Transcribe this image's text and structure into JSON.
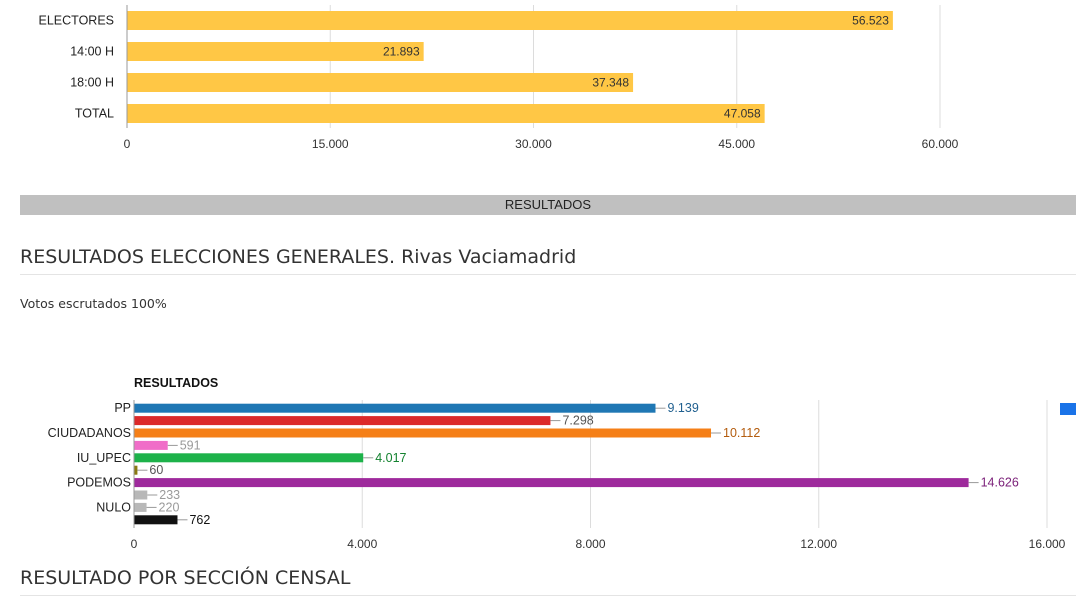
{
  "section_bar": "RESULTADOS",
  "results_heading": "RESULTADOS ELECCIONES GENERALES. Rivas Vaciamadrid",
  "scrutiny_text": "Votos escrutados 100%",
  "section_heading": "RESULTADO POR SECCIÓN CENSAL",
  "legend_color": "#1a73e8",
  "chart_data": [
    {
      "type": "bar",
      "orientation": "horizontal",
      "title": "",
      "categories": [
        "ELECTORES",
        "14:00 H",
        "18:00 H",
        "TOTAL"
      ],
      "values": [
        56523,
        21893,
        37348,
        47058
      ],
      "value_labels": [
        "56.523",
        "21.893",
        "37.348",
        "47.058"
      ],
      "xlim": [
        0,
        60000
      ],
      "ticks": [
        0,
        15000,
        30000,
        45000,
        60000
      ],
      "tick_labels": [
        "0",
        "15.000",
        "30.000",
        "45.000",
        "60.000"
      ],
      "bar_color": "#ffc745",
      "grid": true
    },
    {
      "type": "bar",
      "orientation": "horizontal",
      "title": "RESULTADOS",
      "category_labels": [
        "PP",
        "",
        "CIUDADANOS",
        "",
        "IU_UPEC",
        "",
        "PODEMOS",
        "",
        "NULO",
        ""
      ],
      "values": [
        9139,
        7298,
        10112,
        591,
        4017,
        60,
        14626,
        233,
        220,
        762
      ],
      "value_labels": [
        "9.139",
        "7.298",
        "10.112",
        "591",
        "4.017",
        "60",
        "14.626",
        "233",
        "220",
        "762"
      ],
      "colors": [
        "#1f77b4",
        "#dc2a2a",
        "#f57f17",
        "#f06dc8",
        "#1db24a",
        "#8a7a12",
        "#9e2a9c",
        "#b8b8b8",
        "#b8b8b8",
        "#111111"
      ],
      "label_colors": [
        "#1f5f8f",
        "#555555",
        "#b35c0e",
        "#9a9a9a",
        "#13822f",
        "#555555",
        "#7a1f78",
        "#9a9a9a",
        "#9a9a9a",
        "#111111"
      ],
      "xlim": [
        0,
        16000
      ],
      "ticks": [
        0,
        4000,
        8000,
        12000,
        16000
      ],
      "tick_labels": [
        "0",
        "4.000",
        "8.000",
        "12.000",
        "16.000"
      ],
      "grid": true
    }
  ]
}
